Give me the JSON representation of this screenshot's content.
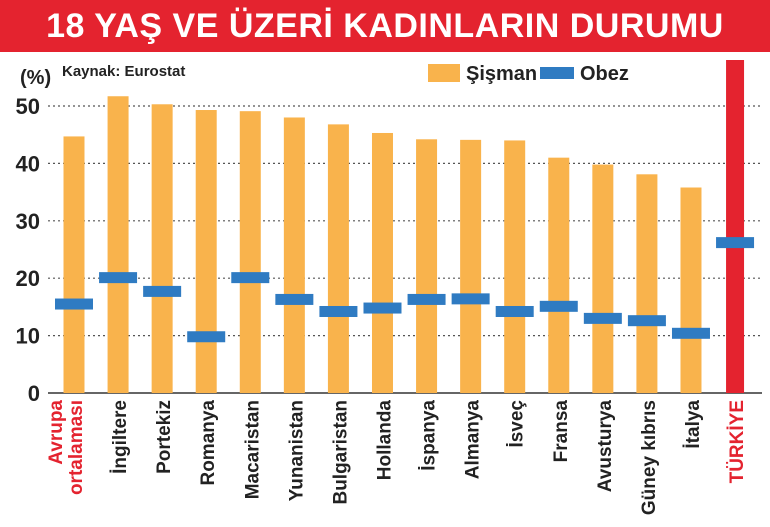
{
  "page": {
    "title": "18 YAŞ VE ÜZERİ KADINLARIN DURUMU",
    "source": "Kaynak: Eurostat"
  },
  "chart_data": {
    "type": "bar",
    "title": "18 YAŞ VE ÜZERİ KADINLARIN DURUMU",
    "ylabel": "(%)",
    "xlabel": "",
    "ylim": [
      0,
      55
    ],
    "yticks": [
      0,
      10,
      20,
      30,
      40,
      50
    ],
    "grid": "horizontal-dashed",
    "legend_position": "top-right",
    "categories": [
      "Avrupa ortalaması",
      "İngiltere",
      "Portekiz",
      "Romanya",
      "Macaristan",
      "Yunanistan",
      "Bulgaristan",
      "Hollanda",
      "İspanya",
      "Almanya",
      "İsveç",
      "Fransa",
      "Avusturya",
      "Güney kıbrıs",
      "İtalya",
      "TÜRKİYE"
    ],
    "category_label_lines": [
      [
        "Avrupa",
        "ortalaması"
      ],
      [
        "İngiltere"
      ],
      [
        "Portekiz"
      ],
      [
        "Romanya"
      ],
      [
        "Macaristan"
      ],
      [
        "Yunanistan"
      ],
      [
        "Bulgaristan"
      ],
      [
        "Hollanda"
      ],
      [
        "İspanya"
      ],
      [
        "Almanya"
      ],
      [
        "İsveç"
      ],
      [
        "Fransa"
      ],
      [
        "Avusturya"
      ],
      [
        "Güney kıbrıs"
      ],
      [
        "İtalya"
      ],
      [
        "TÜRKİYE"
      ]
    ],
    "highlight_categories": [
      "Avrupa ortalaması",
      "TÜRKİYE"
    ],
    "series": [
      {
        "name": "Şişman",
        "type": "bar",
        "color": "#f9b34c",
        "values": [
          44.7,
          51.7,
          50.3,
          49.3,
          49.1,
          48.0,
          46.8,
          45.3,
          44.2,
          44.1,
          44.0,
          41.0,
          39.8,
          38.1,
          35.8,
          57.0
        ]
      },
      {
        "name": "Obez",
        "type": "marker",
        "color": "#2f7bc2",
        "values": [
          15.5,
          20.1,
          17.7,
          9.8,
          20.1,
          16.3,
          14.2,
          14.8,
          16.3,
          16.4,
          14.2,
          15.1,
          13.0,
          12.6,
          10.4,
          26.2
        ]
      }
    ],
    "highlight_bar_color": "#e4232f",
    "highlight_label_color": "#e4232f"
  }
}
